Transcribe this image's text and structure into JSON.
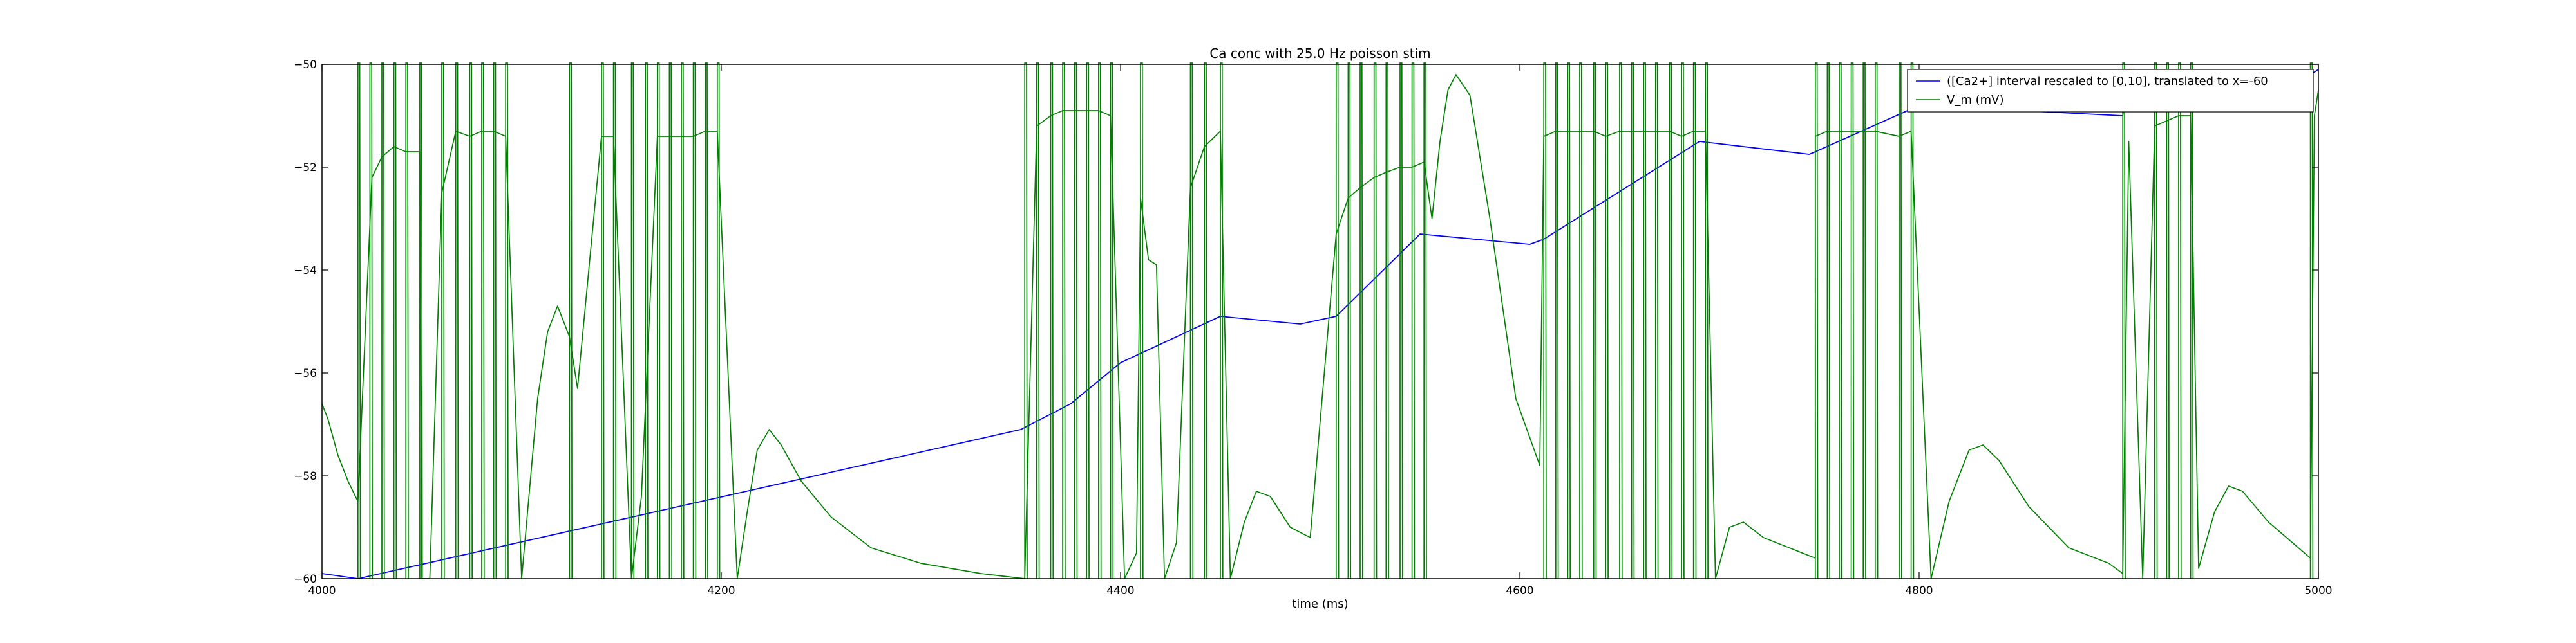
{
  "chart_data": {
    "type": "line",
    "title": "Ca conc with 25.0 Hz poisson stim",
    "xlabel": "time (ms)",
    "ylabel": "",
    "xlim": [
      4000,
      5000
    ],
    "ylim": [
      -60,
      -50
    ],
    "x_ticks": [
      4000,
      4200,
      4400,
      4600,
      4800,
      5000
    ],
    "y_ticks": [
      -60,
      -58,
      -56,
      -54,
      -52,
      -50
    ],
    "x_tick_labels": [
      "4000",
      "4200",
      "4400",
      "4600",
      "4800",
      "5000"
    ],
    "y_tick_labels": [
      "−60",
      "−58",
      "−56",
      "−54",
      "−52",
      "−50"
    ],
    "grid": false,
    "legend": "top-right",
    "colors": {
      "ca": "#0000ff",
      "vm": "#008000",
      "axes": "#000000"
    },
    "spike_times": [
      4018,
      4024,
      4030,
      4036,
      4042,
      4049,
      4060,
      4067,
      4074,
      4080,
      4086,
      4092,
      4124,
      4140,
      4146,
      4155,
      4162,
      4168,
      4174,
      4180,
      4186,
      4192,
      4198,
      4352,
      4358,
      4365,
      4371,
      4377,
      4383,
      4389,
      4395,
      4410,
      4435,
      4442,
      4450,
      4508,
      4514,
      4520,
      4527,
      4533,
      4540,
      4546,
      4552,
      4612,
      4618,
      4624,
      4630,
      4637,
      4643,
      4650,
      4656,
      4662,
      4668,
      4675,
      4681,
      4687,
      4693,
      4748,
      4754,
      4760,
      4766,
      4772,
      4778,
      4790,
      4796,
      4902,
      4918,
      4924,
      4930,
      4936,
      4996
    ],
    "series": [
      {
        "name": "([Ca2+] interval rescaled to [0,10], translated to x=-60",
        "role": "ca",
        "points": [
          [
            4000,
            -59.9
          ],
          [
            4018,
            -60.0
          ],
          [
            4350,
            -57.1
          ],
          [
            4375,
            -56.6
          ],
          [
            4400,
            -55.8
          ],
          [
            4450,
            -54.9
          ],
          [
            4490,
            -55.05
          ],
          [
            4508,
            -54.9
          ],
          [
            4550,
            -53.3
          ],
          [
            4605,
            -53.5
          ],
          [
            4612,
            -53.4
          ],
          [
            4690,
            -51.5
          ],
          [
            4745,
            -51.75
          ],
          [
            4748,
            -51.7
          ],
          [
            4800,
            -50.8
          ],
          [
            4902,
            -51.0
          ],
          [
            4905,
            -50.1
          ],
          [
            4996,
            -50.2
          ],
          [
            5000,
            -50.1
          ]
        ]
      },
      {
        "name": "V_m (mV)",
        "role": "vm",
        "points": [
          [
            4000,
            -56.6
          ],
          [
            4003,
            -56.9
          ],
          [
            4008,
            -57.6
          ],
          [
            4013,
            -58.1
          ],
          [
            4018,
            -58.5
          ],
          [
            4025,
            -52.2
          ],
          [
            4030,
            -51.8
          ],
          [
            4036,
            -51.6
          ],
          [
            4042,
            -51.7
          ],
          [
            4049,
            -51.7
          ],
          [
            4050,
            -60.0
          ],
          [
            4054,
            -60.0
          ],
          [
            4060,
            -52.5
          ],
          [
            4067,
            -51.3
          ],
          [
            4074,
            -51.4
          ],
          [
            4080,
            -51.3
          ],
          [
            4086,
            -51.3
          ],
          [
            4092,
            -51.4
          ],
          [
            4100,
            -60.0
          ],
          [
            4108,
            -56.5
          ],
          [
            4113,
            -55.2
          ],
          [
            4118,
            -54.7
          ],
          [
            4124,
            -55.3
          ],
          [
            4128,
            -56.3
          ],
          [
            4140,
            -51.4
          ],
          [
            4146,
            -51.4
          ],
          [
            4155,
            -60.0
          ],
          [
            4160,
            -58.4
          ],
          [
            4168,
            -51.4
          ],
          [
            4174,
            -51.4
          ],
          [
            4180,
            -51.4
          ],
          [
            4186,
            -51.4
          ],
          [
            4192,
            -51.3
          ],
          [
            4198,
            -51.3
          ],
          [
            4208,
            -60.0
          ],
          [
            4213,
            -58.7
          ],
          [
            4218,
            -57.5
          ],
          [
            4224,
            -57.1
          ],
          [
            4230,
            -57.4
          ],
          [
            4240,
            -58.1
          ],
          [
            4255,
            -58.8
          ],
          [
            4275,
            -59.4
          ],
          [
            4300,
            -59.7
          ],
          [
            4330,
            -59.9
          ],
          [
            4352,
            -60.0
          ],
          [
            4358,
            -51.2
          ],
          [
            4365,
            -51.0
          ],
          [
            4371,
            -50.9
          ],
          [
            4377,
            -50.9
          ],
          [
            4383,
            -50.9
          ],
          [
            4389,
            -50.9
          ],
          [
            4395,
            -51.0
          ],
          [
            4402,
            -60.0
          ],
          [
            4408,
            -59.5
          ],
          [
            4410,
            -52.6
          ],
          [
            4414,
            -53.8
          ],
          [
            4418,
            -53.9
          ],
          [
            4422,
            -60.0
          ],
          [
            4428,
            -59.3
          ],
          [
            4435,
            -52.4
          ],
          [
            4442,
            -51.6
          ],
          [
            4450,
            -51.3
          ],
          [
            4455,
            -60.0
          ],
          [
            4462,
            -58.9
          ],
          [
            4468,
            -58.3
          ],
          [
            4475,
            -58.4
          ],
          [
            4485,
            -59.0
          ],
          [
            4495,
            -59.2
          ],
          [
            4508,
            -53.3
          ],
          [
            4514,
            -52.6
          ],
          [
            4520,
            -52.4
          ],
          [
            4527,
            -52.2
          ],
          [
            4533,
            -52.1
          ],
          [
            4540,
            -52.0
          ],
          [
            4546,
            -52.0
          ],
          [
            4552,
            -51.9
          ],
          [
            4556,
            -53.0
          ],
          [
            4560,
            -51.5
          ],
          [
            4564,
            -50.5
          ],
          [
            4568,
            -50.2
          ],
          [
            4575,
            -50.6
          ],
          [
            4585,
            -53.0
          ],
          [
            4598,
            -56.5
          ],
          [
            4610,
            -57.8
          ],
          [
            4612,
            -51.4
          ],
          [
            4618,
            -51.3
          ],
          [
            4624,
            -51.3
          ],
          [
            4630,
            -51.3
          ],
          [
            4637,
            -51.3
          ],
          [
            4643,
            -51.4
          ],
          [
            4650,
            -51.3
          ],
          [
            4656,
            -51.3
          ],
          [
            4662,
            -51.3
          ],
          [
            4668,
            -51.3
          ],
          [
            4675,
            -51.3
          ],
          [
            4681,
            -51.4
          ],
          [
            4687,
            -51.3
          ],
          [
            4693,
            -51.3
          ],
          [
            4698,
            -60.0
          ],
          [
            4705,
            -59.0
          ],
          [
            4712,
            -58.9
          ],
          [
            4722,
            -59.2
          ],
          [
            4735,
            -59.4
          ],
          [
            4748,
            -59.6
          ],
          [
            4748,
            -51.4
          ],
          [
            4754,
            -51.3
          ],
          [
            4760,
            -51.3
          ],
          [
            4766,
            -51.3
          ],
          [
            4772,
            -51.3
          ],
          [
            4778,
            -51.3
          ],
          [
            4790,
            -51.4
          ],
          [
            4796,
            -51.3
          ],
          [
            4806,
            -60.0
          ],
          [
            4815,
            -58.5
          ],
          [
            4825,
            -57.5
          ],
          [
            4832,
            -57.4
          ],
          [
            4840,
            -57.7
          ],
          [
            4855,
            -58.6
          ],
          [
            4875,
            -59.4
          ],
          [
            4895,
            -59.7
          ],
          [
            4902,
            -59.9
          ],
          [
            4905,
            -51.5
          ],
          [
            4912,
            -60.0
          ],
          [
            4918,
            -51.2
          ],
          [
            4924,
            -51.1
          ],
          [
            4930,
            -51.0
          ],
          [
            4936,
            -51.0
          ],
          [
            4940,
            -59.8
          ],
          [
            4948,
            -58.7
          ],
          [
            4955,
            -58.2
          ],
          [
            4962,
            -58.3
          ],
          [
            4975,
            -58.9
          ],
          [
            4990,
            -59.4
          ],
          [
            4996,
            -59.6
          ],
          [
            4998,
            -51.0
          ],
          [
            5000,
            -50.5
          ]
        ]
      }
    ]
  }
}
